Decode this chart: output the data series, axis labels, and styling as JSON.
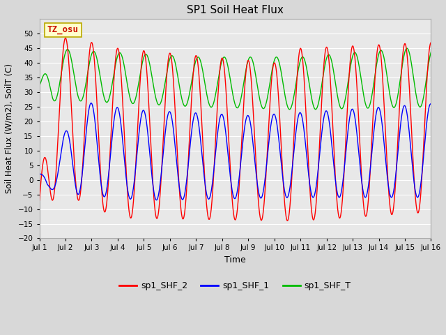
{
  "title": "SP1 Soil Heat Flux",
  "xlabel": "Time",
  "ylabel": "Soil Heat Flux (W/m2), SoilT (C)",
  "ylim": [
    -20,
    55
  ],
  "yticks": [
    -20,
    -15,
    -10,
    -5,
    0,
    5,
    10,
    15,
    20,
    25,
    30,
    35,
    40,
    45,
    50
  ],
  "xtick_labels": [
    "Jul 1",
    "Jul 2",
    "Jul 3",
    "Jul 4",
    "Jul 5",
    "Jul 6",
    "Jul 7",
    "Jul 8",
    "Jul 9",
    "Jul 10",
    "Jul 11",
    "Jul 12",
    "Jul 13",
    "Jul 14",
    "Jul 15",
    "Jul 16"
  ],
  "bg_color": "#d8d8d8",
  "plot_bg": "#e8e8e8",
  "legend_labels": [
    "sp1_SHF_2",
    "sp1_SHF_1",
    "sp1_SHF_T"
  ],
  "legend_colors": [
    "#ff0000",
    "#0000ff",
    "#00bb00"
  ],
  "watermark_text": "TZ_osu",
  "watermark_bg": "#ffffcc",
  "watermark_border": "#bbaa00",
  "n_days": 15,
  "figwidth": 6.4,
  "figheight": 4.8,
  "dpi": 100
}
